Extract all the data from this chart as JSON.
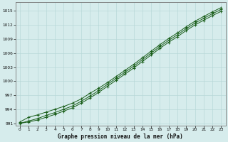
{
  "xlabel": "Graphe pression niveau de la mer (hPa)",
  "background_color": "#d6ecec",
  "grid_color": "#b8d8d8",
  "line_color": "#1a5e1a",
  "xlim": [
    -0.5,
    23.5
  ],
  "ylim": [
    990.5,
    1016.8
  ],
  "yticks": [
    991,
    994,
    997,
    1000,
    1003,
    1006,
    1009,
    1012,
    1015
  ],
  "xticks": [
    0,
    1,
    2,
    3,
    4,
    5,
    6,
    7,
    8,
    9,
    10,
    11,
    12,
    13,
    14,
    15,
    16,
    17,
    18,
    19,
    20,
    21,
    22,
    23
  ],
  "hours": [
    0,
    1,
    2,
    3,
    4,
    5,
    6,
    7,
    8,
    9,
    10,
    11,
    12,
    13,
    14,
    15,
    16,
    17,
    18,
    19,
    20,
    21,
    22,
    23
  ],
  "line1": [
    991.3,
    992.3,
    992.8,
    993.4,
    994.0,
    994.6,
    995.3,
    996.2,
    997.4,
    998.5,
    999.7,
    1001.0,
    1002.3,
    1003.6,
    1005.0,
    1006.4,
    1007.8,
    1009.1,
    1010.3,
    1011.6,
    1012.8,
    1013.8,
    1014.8,
    1015.7
  ],
  "line2": [
    991.0,
    991.5,
    992.0,
    992.7,
    993.3,
    994.0,
    994.7,
    995.7,
    996.8,
    998.0,
    999.3,
    1000.6,
    1001.9,
    1003.2,
    1004.6,
    1006.0,
    1007.4,
    1008.7,
    1009.9,
    1011.2,
    1012.4,
    1013.4,
    1014.4,
    1015.3
  ],
  "line3": [
    991.0,
    991.3,
    991.7,
    992.3,
    992.9,
    993.6,
    994.3,
    995.3,
    996.4,
    997.6,
    998.9,
    1000.2,
    1001.5,
    1002.8,
    1004.2,
    1005.6,
    1007.0,
    1008.3,
    1009.5,
    1010.8,
    1012.0,
    1013.0,
    1014.0,
    1014.9
  ]
}
